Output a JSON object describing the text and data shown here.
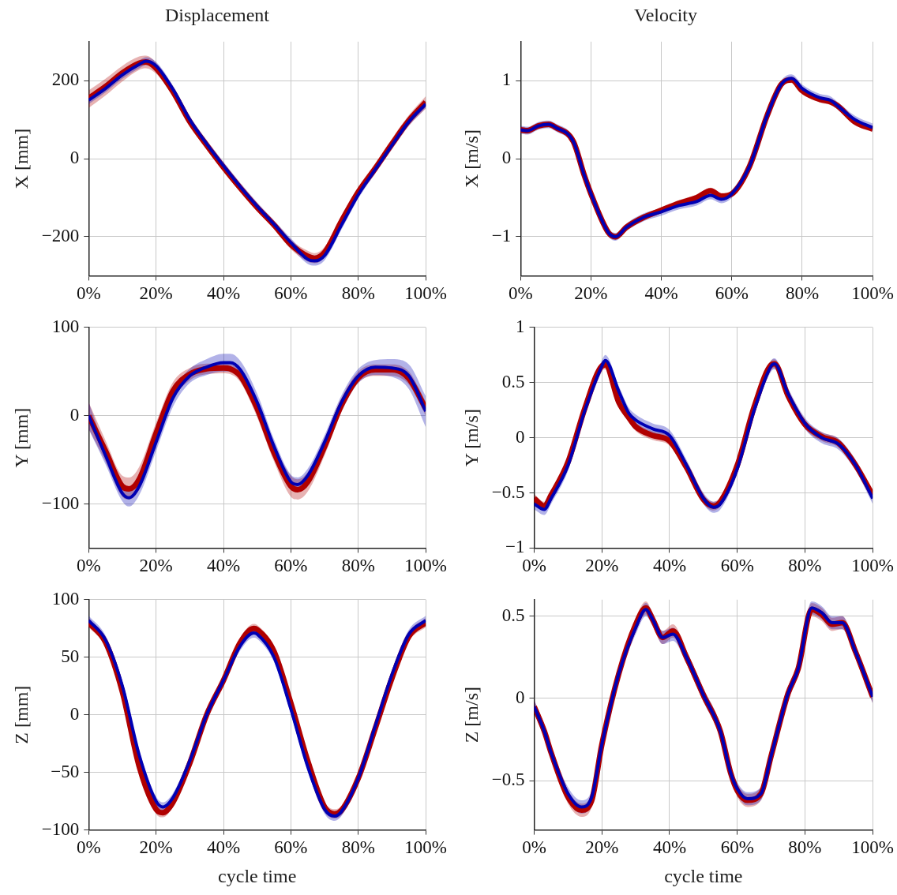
{
  "chart_data": [
    {
      "type": "line",
      "title": "Displacement",
      "ylabel": "X [mm]",
      "grid": true,
      "legend": false,
      "xlim": [
        0,
        100
      ],
      "ylim": [
        -300,
        300
      ],
      "xticks": [
        {
          "value": 0,
          "label": "0%"
        },
        {
          "value": 20,
          "label": "20%"
        },
        {
          "value": 40,
          "label": "40%"
        },
        {
          "value": 60,
          "label": "60%"
        },
        {
          "value": 80,
          "label": "80%"
        },
        {
          "value": 100,
          "label": "100%"
        }
      ],
      "yticks": [
        -200,
        0,
        200
      ],
      "x": [
        0,
        5,
        10,
        15,
        17,
        20,
        25,
        30,
        35,
        40,
        45,
        50,
        55,
        60,
        65,
        67,
        70,
        75,
        80,
        85,
        90,
        95,
        100
      ],
      "series": [
        {
          "color": "#b00000",
          "values": [
            155,
            185,
            220,
            245,
            248,
            232,
            172,
            95,
            35,
            -22,
            -75,
            -125,
            -170,
            -220,
            -250,
            -255,
            -240,
            -160,
            -85,
            -25,
            38,
            98,
            145
          ],
          "lower": [
            130,
            162,
            198,
            228,
            232,
            218,
            160,
            84,
            25,
            -32,
            -84,
            -134,
            -180,
            -232,
            -264,
            -268,
            -252,
            -172,
            -97,
            -38,
            24,
            84,
            128
          ],
          "upper": [
            175,
            205,
            238,
            262,
            264,
            246,
            184,
            106,
            45,
            -12,
            -66,
            -116,
            -160,
            -208,
            -236,
            -242,
            -226,
            -146,
            -72,
            -12,
            52,
            112,
            160
          ]
        },
        {
          "color": "#0000b4",
          "values": [
            150,
            180,
            215,
            242,
            250,
            238,
            178,
            100,
            38,
            -18,
            -72,
            -122,
            -168,
            -215,
            -258,
            -262,
            -248,
            -170,
            -92,
            -28,
            35,
            95,
            140
          ],
          "lower": [
            140,
            170,
            205,
            232,
            240,
            228,
            168,
            90,
            28,
            -28,
            -82,
            -132,
            -178,
            -226,
            -270,
            -274,
            -260,
            -182,
            -102,
            -38,
            25,
            85,
            130
          ],
          "upper": [
            160,
            190,
            225,
            252,
            260,
            248,
            188,
            110,
            48,
            -8,
            -62,
            -112,
            -158,
            -204,
            -246,
            -250,
            -236,
            -158,
            -82,
            -18,
            45,
            105,
            150
          ]
        }
      ]
    },
    {
      "type": "line",
      "title": "Velocity",
      "ylabel": "X [m/s]",
      "grid": true,
      "legend": false,
      "xlim": [
        0,
        100
      ],
      "ylim": [
        -1.5,
        1.5
      ],
      "xticks": [
        {
          "value": 0,
          "label": "0%"
        },
        {
          "value": 20,
          "label": "20%"
        },
        {
          "value": 40,
          "label": "40%"
        },
        {
          "value": 60,
          "label": "60%"
        },
        {
          "value": 80,
          "label": "80%"
        },
        {
          "value": 100,
          "label": "100%"
        }
      ],
      "yticks": [
        -1,
        0,
        1
      ],
      "x": [
        0,
        2,
        5,
        8,
        10,
        15,
        18,
        20,
        25,
        27,
        30,
        35,
        40,
        45,
        50,
        54,
        57,
        60,
        65,
        70,
        74,
        77,
        80,
        85,
        88,
        90,
        95,
        100
      ],
      "series": [
        {
          "color": "#b00000",
          "values": [
            0.37,
            0.36,
            0.42,
            0.44,
            0.4,
            0.22,
            -0.2,
            -0.45,
            -0.95,
            -1.0,
            -0.88,
            -0.75,
            -0.66,
            -0.57,
            -0.5,
            -0.41,
            -0.48,
            -0.45,
            -0.1,
            0.55,
            0.95,
            1.01,
            0.87,
            0.76,
            0.73,
            0.68,
            0.47,
            0.38
          ],
          "lower": [
            0.33,
            0.32,
            0.38,
            0.4,
            0.36,
            0.18,
            -0.24,
            -0.49,
            -0.99,
            -1.04,
            -0.92,
            -0.79,
            -0.7,
            -0.61,
            -0.54,
            -0.45,
            -0.52,
            -0.49,
            -0.14,
            0.51,
            0.91,
            0.97,
            0.83,
            0.72,
            0.69,
            0.64,
            0.43,
            0.34
          ],
          "upper": [
            0.41,
            0.4,
            0.46,
            0.48,
            0.44,
            0.26,
            -0.16,
            -0.41,
            -0.91,
            -0.96,
            -0.84,
            -0.71,
            -0.62,
            -0.53,
            -0.46,
            -0.37,
            -0.44,
            -0.41,
            -0.06,
            0.59,
            0.99,
            1.05,
            0.91,
            0.8,
            0.77,
            0.72,
            0.51,
            0.42
          ]
        },
        {
          "color": "#0000b4",
          "values": [
            0.37,
            0.36,
            0.42,
            0.44,
            0.4,
            0.22,
            -0.2,
            -0.45,
            -0.95,
            -1.0,
            -0.88,
            -0.75,
            -0.68,
            -0.6,
            -0.55,
            -0.47,
            -0.52,
            -0.45,
            -0.1,
            0.55,
            0.95,
            1.03,
            0.9,
            0.78,
            0.75,
            0.68,
            0.5,
            0.4
          ],
          "lower": [
            0.32,
            0.31,
            0.37,
            0.39,
            0.35,
            0.17,
            -0.25,
            -0.5,
            -1.0,
            -1.05,
            -0.93,
            -0.8,
            -0.73,
            -0.65,
            -0.6,
            -0.52,
            -0.57,
            -0.5,
            -0.15,
            0.5,
            0.9,
            0.98,
            0.85,
            0.73,
            0.7,
            0.63,
            0.45,
            0.35
          ],
          "upper": [
            0.42,
            0.41,
            0.47,
            0.49,
            0.45,
            0.27,
            -0.15,
            -0.4,
            -0.9,
            -0.95,
            -0.83,
            -0.7,
            -0.63,
            -0.55,
            -0.5,
            -0.42,
            -0.47,
            -0.4,
            -0.05,
            0.6,
            1.0,
            1.08,
            0.95,
            0.83,
            0.8,
            0.73,
            0.55,
            0.45
          ]
        }
      ]
    },
    {
      "type": "line",
      "ylabel": "Y [mm]",
      "grid": true,
      "legend": false,
      "xlim": [
        0,
        100
      ],
      "ylim": [
        -150,
        100
      ],
      "xticks": [
        {
          "value": 0,
          "label": "0%"
        },
        {
          "value": 20,
          "label": "20%"
        },
        {
          "value": 40,
          "label": "40%"
        },
        {
          "value": 60,
          "label": "60%"
        },
        {
          "value": 80,
          "label": "80%"
        },
        {
          "value": 100,
          "label": "100%"
        }
      ],
      "yticks": [
        -100,
        0,
        100
      ],
      "x": [
        0,
        5,
        10,
        12,
        15,
        20,
        25,
        30,
        35,
        40,
        42,
        45,
        50,
        55,
        60,
        62,
        65,
        70,
        75,
        80,
        85,
        90,
        95,
        100
      ],
      "series": [
        {
          "color": "#b00000",
          "values": [
            0,
            -40,
            -80,
            -83,
            -72,
            -20,
            28,
            47,
            53,
            54,
            53,
            45,
            8,
            -42,
            -80,
            -84,
            -75,
            -35,
            12,
            43,
            52,
            52,
            42,
            8
          ],
          "lower": [
            -15,
            -52,
            -92,
            -95,
            -84,
            -32,
            18,
            40,
            47,
            48,
            47,
            38,
            -2,
            -52,
            -92,
            -95,
            -86,
            -45,
            4,
            37,
            45,
            45,
            35,
            0
          ],
          "upper": [
            15,
            -28,
            -68,
            -70,
            -58,
            -8,
            38,
            54,
            59,
            59,
            58,
            52,
            18,
            -32,
            -68,
            -72,
            -64,
            -25,
            20,
            50,
            58,
            58,
            50,
            16
          ]
        },
        {
          "color": "#0000b4",
          "values": [
            0,
            -45,
            -88,
            -93,
            -80,
            -30,
            20,
            45,
            55,
            60,
            60,
            52,
            15,
            -35,
            -75,
            -78,
            -68,
            -30,
            15,
            45,
            55,
            54,
            45,
            5
          ],
          "lower": [
            -15,
            -55,
            -97,
            -103,
            -90,
            -40,
            10,
            37,
            46,
            50,
            50,
            42,
            5,
            -44,
            -83,
            -86,
            -77,
            -40,
            5,
            37,
            46,
            44,
            30,
            -13
          ],
          "upper": [
            15,
            -37,
            -80,
            -85,
            -72,
            -22,
            28,
            53,
            64,
            70,
            70,
            62,
            25,
            -27,
            -67,
            -70,
            -60,
            -22,
            23,
            53,
            63,
            64,
            58,
            22
          ]
        }
      ]
    },
    {
      "type": "line",
      "ylabel": "Y [m/s]",
      "grid": true,
      "legend": false,
      "xlim": [
        0,
        100
      ],
      "ylim": [
        -1,
        1
      ],
      "xticks": [
        {
          "value": 0,
          "label": "0%"
        },
        {
          "value": 20,
          "label": "20%"
        },
        {
          "value": 40,
          "label": "40%"
        },
        {
          "value": 60,
          "label": "60%"
        },
        {
          "value": 80,
          "label": "80%"
        },
        {
          "value": 100,
          "label": "100%"
        }
      ],
      "yticks": [
        -1,
        -0.5,
        0,
        0.5,
        1
      ],
      "x": [
        0,
        3,
        5,
        10,
        15,
        20,
        21,
        25,
        28,
        30,
        35,
        40,
        45,
        50,
        53,
        55,
        60,
        65,
        70,
        71,
        75,
        80,
        85,
        90,
        95,
        100
      ],
      "series": [
        {
          "color": "#b00000",
          "values": [
            -0.55,
            -0.62,
            -0.52,
            -0.22,
            0.27,
            0.65,
            0.66,
            0.32,
            0.18,
            0.1,
            0.02,
            -0.03,
            -0.27,
            -0.56,
            -0.62,
            -0.58,
            -0.25,
            0.28,
            0.66,
            0.67,
            0.38,
            0.12,
            0.01,
            -0.05,
            -0.25,
            -0.52
          ],
          "lower": [
            -0.59,
            -0.66,
            -0.56,
            -0.26,
            0.23,
            0.61,
            0.62,
            0.28,
            0.14,
            0.06,
            -0.02,
            -0.07,
            -0.31,
            -0.6,
            -0.66,
            -0.62,
            -0.29,
            0.24,
            0.62,
            0.63,
            0.34,
            0.08,
            -0.03,
            -0.09,
            -0.29,
            -0.56
          ],
          "upper": [
            -0.51,
            -0.58,
            -0.48,
            -0.18,
            0.31,
            0.69,
            0.7,
            0.36,
            0.22,
            0.14,
            0.06,
            0.01,
            -0.23,
            -0.52,
            -0.58,
            -0.54,
            -0.21,
            0.32,
            0.7,
            0.71,
            0.42,
            0.16,
            0.05,
            -0.01,
            -0.21,
            -0.48
          ]
        },
        {
          "color": "#0000b4",
          "values": [
            -0.6,
            -0.65,
            -0.55,
            -0.25,
            0.25,
            0.65,
            0.7,
            0.42,
            0.22,
            0.16,
            0.08,
            0.02,
            -0.25,
            -0.55,
            -0.63,
            -0.6,
            -0.28,
            0.25,
            0.65,
            0.67,
            0.4,
            0.13,
            0,
            -0.06,
            -0.25,
            -0.55
          ],
          "lower": [
            -0.65,
            -0.7,
            -0.6,
            -0.3,
            0.2,
            0.6,
            0.65,
            0.37,
            0.17,
            0.11,
            0.03,
            -0.03,
            -0.3,
            -0.6,
            -0.68,
            -0.65,
            -0.33,
            0.2,
            0.6,
            0.62,
            0.35,
            0.08,
            -0.05,
            -0.11,
            -0.3,
            -0.6
          ],
          "upper": [
            -0.55,
            -0.6,
            -0.5,
            -0.2,
            0.3,
            0.7,
            0.75,
            0.47,
            0.27,
            0.21,
            0.13,
            0.07,
            -0.2,
            -0.5,
            -0.58,
            -0.55,
            -0.23,
            0.3,
            0.7,
            0.72,
            0.45,
            0.18,
            0.05,
            -0.01,
            -0.2,
            -0.5
          ]
        }
      ]
    },
    {
      "type": "line",
      "xlabel": "cycle time",
      "ylabel": "Z [mm]",
      "grid": true,
      "legend": false,
      "xlim": [
        0,
        100
      ],
      "ylim": [
        -100,
        100
      ],
      "xticks": [
        {
          "value": 0,
          "label": "0%"
        },
        {
          "value": 20,
          "label": "20%"
        },
        {
          "value": 40,
          "label": "40%"
        },
        {
          "value": 60,
          "label": "60%"
        },
        {
          "value": 80,
          "label": "80%"
        },
        {
          "value": 100,
          "label": "100%"
        }
      ],
      "yticks": [
        -100,
        -50,
        0,
        50,
        100
      ],
      "x": [
        0,
        5,
        10,
        15,
        20,
        22,
        25,
        30,
        35,
        40,
        45,
        49,
        50,
        55,
        60,
        65,
        70,
        73,
        75,
        80,
        85,
        90,
        95,
        100
      ],
      "series": [
        {
          "color": "#b00000",
          "values": [
            80,
            63,
            20,
            -45,
            -82,
            -85,
            -76,
            -42,
            0,
            30,
            63,
            75,
            74,
            55,
            10,
            -40,
            -80,
            -86,
            -83,
            -55,
            -12,
            32,
            68,
            80
          ],
          "lower": [
            76,
            59,
            16,
            -49,
            -86,
            -89,
            -80,
            -46,
            -4,
            26,
            59,
            71,
            70,
            51,
            6,
            -44,
            -84,
            -90,
            -87,
            -59,
            -16,
            28,
            64,
            76
          ],
          "upper": [
            84,
            67,
            24,
            -41,
            -78,
            -81,
            -72,
            -38,
            4,
            34,
            67,
            79,
            78,
            59,
            14,
            -36,
            -76,
            -82,
            -79,
            -51,
            -8,
            36,
            72,
            84
          ]
        },
        {
          "color": "#0000b4",
          "values": [
            82,
            65,
            25,
            -35,
            -75,
            -80,
            -72,
            -40,
            0,
            30,
            60,
            71,
            70,
            50,
            5,
            -45,
            -82,
            -88,
            -84,
            -55,
            -10,
            35,
            70,
            82
          ],
          "lower": [
            78,
            61,
            21,
            -39,
            -79,
            -84,
            -76,
            -44,
            -4,
            26,
            56,
            67,
            66,
            46,
            1,
            -49,
            -86,
            -92,
            -88,
            -59,
            -14,
            31,
            66,
            78
          ],
          "upper": [
            86,
            69,
            29,
            -31,
            -71,
            -76,
            -68,
            -36,
            4,
            34,
            64,
            75,
            74,
            54,
            9,
            -41,
            -78,
            -84,
            -80,
            -51,
            -6,
            39,
            74,
            86
          ]
        }
      ]
    },
    {
      "type": "line",
      "xlabel": "cycle time",
      "ylabel": "Z [m/s]",
      "grid": true,
      "legend": false,
      "xlim": [
        0,
        100
      ],
      "ylim": [
        -0.8,
        0.6
      ],
      "xticks": [
        {
          "value": 0,
          "label": "0%"
        },
        {
          "value": 20,
          "label": "20%"
        },
        {
          "value": 40,
          "label": "40%"
        },
        {
          "value": 60,
          "label": "60%"
        },
        {
          "value": 80,
          "label": "80%"
        },
        {
          "value": 100,
          "label": "100%"
        }
      ],
      "yticks": [
        -0.5,
        0,
        0.5
      ],
      "x": [
        0,
        3,
        5,
        10,
        14,
        17,
        20,
        25,
        30,
        33,
        35,
        38,
        41,
        45,
        50,
        55,
        58,
        60,
        63,
        67,
        70,
        75,
        78,
        82,
        85,
        88,
        91,
        95,
        100
      ],
      "series": [
        {
          "color": "#b00000",
          "values": [
            -0.05,
            -0.2,
            -0.33,
            -0.6,
            -0.68,
            -0.62,
            -0.28,
            0.15,
            0.45,
            0.55,
            0.48,
            0.37,
            0.41,
            0.25,
            0.02,
            -0.2,
            -0.45,
            -0.56,
            -0.62,
            -0.58,
            -0.35,
            0.03,
            0.18,
            0.54,
            0.51,
            0.45,
            0.46,
            0.28,
            0.01
          ],
          "lower": [
            -0.09,
            -0.24,
            -0.37,
            -0.64,
            -0.72,
            -0.66,
            -0.32,
            0.11,
            0.41,
            0.51,
            0.44,
            0.33,
            0.37,
            0.21,
            -0.02,
            -0.24,
            -0.49,
            -0.6,
            -0.66,
            -0.62,
            -0.39,
            -0.01,
            0.14,
            0.5,
            0.47,
            0.41,
            0.42,
            0.24,
            -0.03
          ],
          "upper": [
            -0.01,
            -0.16,
            -0.29,
            -0.56,
            -0.64,
            -0.58,
            -0.24,
            0.19,
            0.49,
            0.59,
            0.52,
            0.41,
            0.45,
            0.29,
            0.06,
            -0.16,
            -0.41,
            -0.52,
            -0.58,
            -0.54,
            -0.31,
            0.07,
            0.22,
            0.58,
            0.55,
            0.49,
            0.5,
            0.32,
            0.05
          ]
        },
        {
          "color": "#0000b4",
          "values": [
            -0.05,
            -0.2,
            -0.33,
            -0.58,
            -0.66,
            -0.6,
            -0.28,
            0.15,
            0.43,
            0.54,
            0.48,
            0.37,
            0.39,
            0.25,
            0.02,
            -0.2,
            -0.45,
            -0.55,
            -0.61,
            -0.58,
            -0.35,
            0.03,
            0.18,
            0.55,
            0.52,
            0.46,
            0.46,
            0.28,
            0.01
          ],
          "lower": [
            -0.09,
            -0.24,
            -0.37,
            -0.62,
            -0.7,
            -0.64,
            -0.32,
            0.11,
            0.39,
            0.5,
            0.44,
            0.33,
            0.35,
            0.21,
            -0.02,
            -0.24,
            -0.49,
            -0.59,
            -0.65,
            -0.62,
            -0.39,
            -0.01,
            0.14,
            0.51,
            0.48,
            0.42,
            0.42,
            0.24,
            -0.03
          ],
          "upper": [
            -0.01,
            -0.16,
            -0.29,
            -0.54,
            -0.62,
            -0.56,
            -0.24,
            0.19,
            0.47,
            0.58,
            0.52,
            0.41,
            0.43,
            0.29,
            0.06,
            -0.16,
            -0.41,
            -0.51,
            -0.57,
            -0.54,
            -0.31,
            0.07,
            0.22,
            0.59,
            0.56,
            0.5,
            0.5,
            0.32,
            0.05
          ]
        }
      ]
    }
  ]
}
